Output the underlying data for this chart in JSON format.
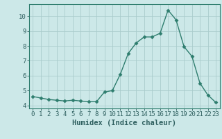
{
  "x": [
    0,
    1,
    2,
    3,
    4,
    5,
    6,
    7,
    8,
    9,
    10,
    11,
    12,
    13,
    14,
    15,
    16,
    17,
    18,
    19,
    20,
    21,
    22,
    23
  ],
  "y": [
    4.6,
    4.5,
    4.4,
    4.35,
    4.3,
    4.35,
    4.3,
    4.25,
    4.25,
    4.9,
    5.0,
    6.1,
    7.5,
    8.2,
    8.6,
    8.6,
    8.85,
    10.4,
    9.75,
    7.95,
    7.3,
    5.5,
    4.7,
    4.2
  ],
  "line_color": "#2e7d6e",
  "marker": "D",
  "marker_size": 2.5,
  "bg_color": "#cce8e8",
  "grid_color": "#aacccc",
  "xlabel": "Humidex (Indice chaleur)",
  "xlim": [
    -0.5,
    23.5
  ],
  "ylim": [
    3.8,
    10.8
  ],
  "yticks": [
    4,
    5,
    6,
    7,
    8,
    9,
    10
  ],
  "xticks": [
    0,
    1,
    2,
    3,
    4,
    5,
    6,
    7,
    8,
    9,
    10,
    11,
    12,
    13,
    14,
    15,
    16,
    17,
    18,
    19,
    20,
    21,
    22,
    23
  ],
  "tick_color": "#2e5f5f",
  "tick_fontsize": 6.5,
  "xlabel_fontsize": 7.5
}
